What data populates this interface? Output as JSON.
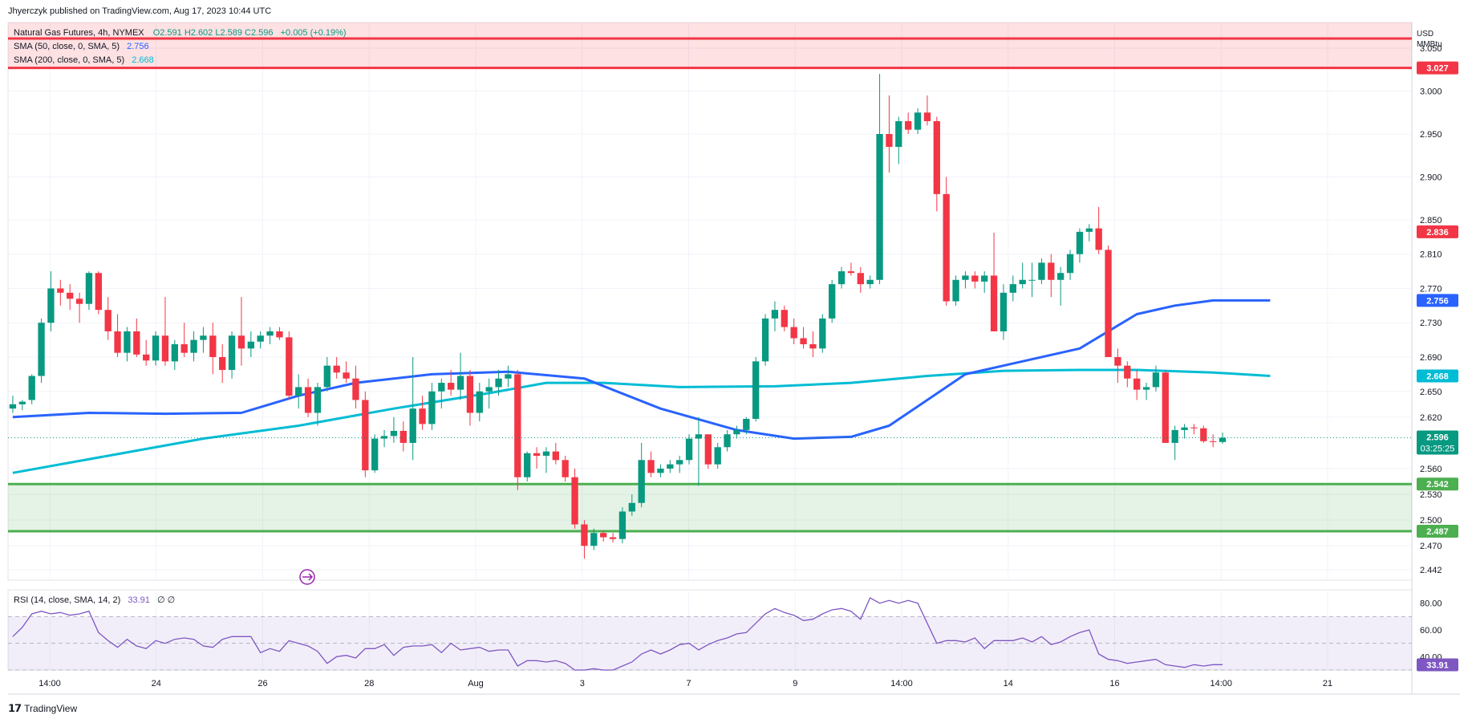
{
  "header": {
    "published": "Jhyerczyk published on TradingView.com, Aug 17, 2023 10:44 UTC"
  },
  "legend": {
    "symbol": "Natural Gas Futures, 4h, NYMEX",
    "ohlc": "O2.591  H2.602  L2.589  C2.596",
    "change": "+0.005 (+0.19%)",
    "sma50_label": "SMA (50, close, 0, SMA, 5)",
    "sma50_value": "2.756",
    "sma200_label": "SMA (200, close, 0, SMA, 5)",
    "sma200_value": "2.668",
    "rsi_label": "RSI (14, close, SMA, 14, 2)",
    "rsi_value": "33.91",
    "rsi_extra": "∅  ∅"
  },
  "currency": {
    "line1": "USD",
    "line2": "MMBtu"
  },
  "footer": {
    "brand": "TradingView"
  },
  "colors": {
    "up": "#089981",
    "down": "#f23645",
    "sma50": "#2962ff",
    "sma200": "#00bcd4",
    "rsi": "#7e57c2",
    "resistance": "#f23645",
    "support": "#4caf50"
  },
  "chart_data": {
    "type": "candlestick",
    "price_axis": {
      "ylim": [
        2.43,
        3.08
      ],
      "ticks": [
        "3.050",
        "3.000",
        "2.950",
        "2.900",
        "2.850",
        "2.810",
        "2.770",
        "2.730",
        "2.690",
        "2.650",
        "2.620",
        "2.560",
        "2.530",
        "2.500",
        "2.470",
        "2.442"
      ]
    },
    "time_axis": {
      "labels": [
        "14:00",
        "24",
        "26",
        "28",
        "Aug",
        "3",
        "7",
        "9",
        "14:00",
        "14",
        "16",
        "14:00",
        "21"
      ]
    },
    "zones": [
      {
        "name": "resistance",
        "from": 3.027,
        "to": 3.08
      },
      {
        "name": "support",
        "from": 2.487,
        "to": 2.542
      }
    ],
    "levels": [
      {
        "value": 3.027,
        "label": "3.027",
        "color": "#f23645"
      },
      {
        "value": 2.836,
        "label": "2.836",
        "color": "#f23645"
      },
      {
        "value": 2.756,
        "label": "2.756",
        "color": "#2962ff"
      },
      {
        "value": 2.668,
        "label": "2.668",
        "color": "#00bcd4"
      },
      {
        "value": 2.542,
        "label": "2.542",
        "color": "#4caf50"
      },
      {
        "value": 2.487,
        "label": "2.487",
        "color": "#4caf50"
      }
    ],
    "last_price": {
      "value": 2.596,
      "label": "2.596",
      "countdown": "03:25:25"
    },
    "candles": [
      [
        2.63,
        2.645,
        2.625,
        2.635
      ],
      [
        2.635,
        2.64,
        2.628,
        2.638
      ],
      [
        2.64,
        2.67,
        2.635,
        2.668
      ],
      [
        2.668,
        2.735,
        2.66,
        2.73
      ],
      [
        2.73,
        2.79,
        2.72,
        2.77
      ],
      [
        2.77,
        2.78,
        2.75,
        2.765
      ],
      [
        2.765,
        2.775,
        2.745,
        2.758
      ],
      [
        2.758,
        2.765,
        2.73,
        2.752
      ],
      [
        2.752,
        2.79,
        2.745,
        2.788
      ],
      [
        2.788,
        2.79,
        2.74,
        2.745
      ],
      [
        2.745,
        2.76,
        2.71,
        2.72
      ],
      [
        2.72,
        2.74,
        2.69,
        2.695
      ],
      [
        2.695,
        2.725,
        2.685,
        2.72
      ],
      [
        2.72,
        2.735,
        2.69,
        2.693
      ],
      [
        2.693,
        2.71,
        2.68,
        2.686
      ],
      [
        2.686,
        2.72,
        2.68,
        2.715
      ],
      [
        2.715,
        2.76,
        2.68,
        2.685
      ],
      [
        2.685,
        2.71,
        2.675,
        2.705
      ],
      [
        2.705,
        2.73,
        2.69,
        2.695
      ],
      [
        2.695,
        2.72,
        2.685,
        2.71
      ],
      [
        2.71,
        2.725,
        2.695,
        2.715
      ],
      [
        2.715,
        2.73,
        2.67,
        2.69
      ],
      [
        2.69,
        2.705,
        2.66,
        2.675
      ],
      [
        2.675,
        2.72,
        2.665,
        2.715
      ],
      [
        2.715,
        2.76,
        2.68,
        2.7
      ],
      [
        2.7,
        2.72,
        2.69,
        2.708
      ],
      [
        2.708,
        2.72,
        2.7,
        2.715
      ],
      [
        2.715,
        2.725,
        2.705,
        2.72
      ],
      [
        2.72,
        2.725,
        2.71,
        2.713
      ],
      [
        2.713,
        2.72,
        2.64,
        2.645
      ],
      [
        2.645,
        2.67,
        2.63,
        2.655
      ],
      [
        2.655,
        2.665,
        2.62,
        2.625
      ],
      [
        2.625,
        2.66,
        2.61,
        2.655
      ],
      [
        2.655,
        2.69,
        2.65,
        2.68
      ],
      [
        2.68,
        2.69,
        2.665,
        2.672
      ],
      [
        2.672,
        2.685,
        2.66,
        2.665
      ],
      [
        2.665,
        2.68,
        2.63,
        2.64
      ],
      [
        2.64,
        2.65,
        2.55,
        2.558
      ],
      [
        2.558,
        2.6,
        2.555,
        2.595
      ],
      [
        2.595,
        2.605,
        2.585,
        2.598
      ],
      [
        2.598,
        2.62,
        2.59,
        2.604
      ],
      [
        2.604,
        2.615,
        2.58,
        2.59
      ],
      [
        2.59,
        2.69,
        2.57,
        2.63
      ],
      [
        2.63,
        2.645,
        2.605,
        2.612
      ],
      [
        2.612,
        2.66,
        2.605,
        2.65
      ],
      [
        2.65,
        2.665,
        2.63,
        2.66
      ],
      [
        2.66,
        2.675,
        2.645,
        2.652
      ],
      [
        2.652,
        2.695,
        2.64,
        2.668
      ],
      [
        2.668,
        2.675,
        2.61,
        2.625
      ],
      [
        2.625,
        2.66,
        2.615,
        2.65
      ],
      [
        2.65,
        2.665,
        2.63,
        2.655
      ],
      [
        2.655,
        2.675,
        2.645,
        2.665
      ],
      [
        2.665,
        2.68,
        2.655,
        2.67
      ],
      [
        2.67,
        2.675,
        2.535,
        2.55
      ],
      [
        2.55,
        2.58,
        2.545,
        2.578
      ],
      [
        2.578,
        2.585,
        2.56,
        2.575
      ],
      [
        2.575,
        2.585,
        2.555,
        2.58
      ],
      [
        2.58,
        2.59,
        2.565,
        2.57
      ],
      [
        2.57,
        2.575,
        2.545,
        2.55
      ],
      [
        2.55,
        2.56,
        2.49,
        2.495
      ],
      [
        2.495,
        2.5,
        2.455,
        2.47
      ],
      [
        2.47,
        2.49,
        2.465,
        2.485
      ],
      [
        2.485,
        2.488,
        2.475,
        2.48
      ],
      [
        2.48,
        2.485,
        2.474,
        2.478
      ],
      [
        2.478,
        2.515,
        2.473,
        2.51
      ],
      [
        2.51,
        2.53,
        2.505,
        2.52
      ],
      [
        2.52,
        2.59,
        2.515,
        2.57
      ],
      [
        2.57,
        2.58,
        2.55,
        2.555
      ],
      [
        2.555,
        2.565,
        2.55,
        2.56
      ],
      [
        2.56,
        2.57,
        2.555,
        2.565
      ],
      [
        2.565,
        2.575,
        2.555,
        2.57
      ],
      [
        2.57,
        2.6,
        2.565,
        2.595
      ],
      [
        2.595,
        2.62,
        2.54,
        2.6
      ],
      [
        2.6,
        2.6,
        2.56,
        2.565
      ],
      [
        2.565,
        2.59,
        2.56,
        2.585
      ],
      [
        2.585,
        2.605,
        2.58,
        2.6
      ],
      [
        2.6,
        2.61,
        2.595,
        2.605
      ],
      [
        2.605,
        2.62,
        2.6,
        2.618
      ],
      [
        2.618,
        2.69,
        2.615,
        2.685
      ],
      [
        2.685,
        2.74,
        2.68,
        2.735
      ],
      [
        2.735,
        2.755,
        2.72,
        2.745
      ],
      [
        2.745,
        2.75,
        2.72,
        2.725
      ],
      [
        2.725,
        2.735,
        2.705,
        2.712
      ],
      [
        2.712,
        2.725,
        2.7,
        2.705
      ],
      [
        2.705,
        2.72,
        2.69,
        2.7
      ],
      [
        2.7,
        2.74,
        2.695,
        2.735
      ],
      [
        2.735,
        2.78,
        2.73,
        2.775
      ],
      [
        2.775,
        2.795,
        2.77,
        2.79
      ],
      [
        2.79,
        2.8,
        2.785,
        2.788
      ],
      [
        2.788,
        2.795,
        2.765,
        2.775
      ],
      [
        2.775,
        2.785,
        2.77,
        2.78
      ],
      [
        2.78,
        3.02,
        2.775,
        2.95
      ],
      [
        2.95,
        2.995,
        2.905,
        2.935
      ],
      [
        2.935,
        2.97,
        2.915,
        2.965
      ],
      [
        2.965,
        2.975,
        2.95,
        2.955
      ],
      [
        2.955,
        2.98,
        2.95,
        2.975
      ],
      [
        2.975,
        2.995,
        2.96,
        2.965
      ],
      [
        2.965,
        2.97,
        2.86,
        2.88
      ],
      [
        2.88,
        2.9,
        2.75,
        2.755
      ],
      [
        2.755,
        2.785,
        2.75,
        2.78
      ],
      [
        2.78,
        2.79,
        2.77,
        2.785
      ],
      [
        2.785,
        2.79,
        2.77,
        2.778
      ],
      [
        2.778,
        2.79,
        2.765,
        2.785
      ],
      [
        2.785,
        2.835,
        2.72,
        2.72
      ],
      [
        2.72,
        2.775,
        2.71,
        2.765
      ],
      [
        2.765,
        2.785,
        2.755,
        2.775
      ],
      [
        2.775,
        2.8,
        2.77,
        2.78
      ],
      [
        2.78,
        2.8,
        2.76,
        2.78
      ],
      [
        2.78,
        2.805,
        2.775,
        2.8
      ],
      [
        2.8,
        2.81,
        2.76,
        2.78
      ],
      [
        2.78,
        2.795,
        2.75,
        2.788
      ],
      [
        2.788,
        2.815,
        2.78,
        2.81
      ],
      [
        2.81,
        2.84,
        2.8,
        2.836
      ],
      [
        2.836,
        2.845,
        2.825,
        2.84
      ],
      [
        2.84,
        2.865,
        2.81,
        2.815
      ],
      [
        2.815,
        2.82,
        2.69,
        2.69
      ],
      [
        2.69,
        2.7,
        2.66,
        2.68
      ],
      [
        2.68,
        2.685,
        2.655,
        2.665
      ],
      [
        2.665,
        2.675,
        2.64,
        2.652
      ],
      [
        2.652,
        2.66,
        2.64,
        2.655
      ],
      [
        2.655,
        2.68,
        2.65,
        2.672
      ],
      [
        2.672,
        2.675,
        2.59,
        2.59
      ],
      [
        2.59,
        2.61,
        2.57,
        2.605
      ],
      [
        2.605,
        2.612,
        2.595,
        2.608
      ],
      [
        2.608,
        2.612,
        2.6,
        2.607
      ],
      [
        2.607,
        2.61,
        2.59,
        2.592
      ],
      [
        2.592,
        2.6,
        2.585,
        2.591
      ],
      [
        2.591,
        2.602,
        2.589,
        2.596
      ]
    ],
    "sma50": [
      [
        0,
        2.62
      ],
      [
        8,
        2.625
      ],
      [
        16,
        2.624
      ],
      [
        24,
        2.625
      ],
      [
        30,
        2.645
      ],
      [
        36,
        2.66
      ],
      [
        44,
        2.67
      ],
      [
        52,
        2.673
      ],
      [
        60,
        2.665
      ],
      [
        68,
        2.63
      ],
      [
        76,
        2.605
      ],
      [
        82,
        2.595
      ],
      [
        88,
        2.597
      ],
      [
        92,
        2.61
      ],
      [
        96,
        2.64
      ],
      [
        100,
        2.67
      ],
      [
        106,
        2.685
      ],
      [
        112,
        2.7
      ],
      [
        118,
        2.74
      ],
      [
        122,
        2.75
      ],
      [
        126,
        2.756
      ],
      [
        132,
        2.756
      ]
    ],
    "sma200": [
      [
        0,
        2.555
      ],
      [
        10,
        2.575
      ],
      [
        20,
        2.595
      ],
      [
        30,
        2.61
      ],
      [
        40,
        2.63
      ],
      [
        50,
        2.648
      ],
      [
        56,
        2.66
      ],
      [
        62,
        2.66
      ],
      [
        70,
        2.655
      ],
      [
        80,
        2.656
      ],
      [
        88,
        2.66
      ],
      [
        96,
        2.668
      ],
      [
        104,
        2.674
      ],
      [
        112,
        2.675
      ],
      [
        118,
        2.675
      ],
      [
        126,
        2.672
      ],
      [
        132,
        2.668
      ]
    ],
    "rsi": {
      "ylim": [
        30,
        90
      ],
      "ticks": [
        "80.00",
        "60.00",
        "40.00"
      ],
      "band": [
        30,
        70
      ],
      "values": [
        55,
        62,
        72,
        74,
        72,
        73,
        71,
        72,
        74,
        58,
        52,
        47,
        53,
        48,
        46,
        52,
        50,
        53,
        54,
        53,
        48,
        47,
        53,
        55,
        55,
        55,
        43,
        46,
        44,
        52,
        50,
        48,
        44,
        35,
        40,
        41,
        39,
        46,
        46,
        49,
        41,
        47,
        48,
        48,
        49,
        43,
        50,
        45,
        46,
        47,
        44,
        45,
        45,
        33,
        37,
        37,
        36,
        37,
        35,
        29,
        28,
        31,
        30,
        30,
        33,
        36,
        42,
        45,
        42,
        45,
        49,
        50,
        45,
        49,
        52,
        54,
        57,
        58,
        65,
        72,
        76,
        73,
        71,
        67,
        68,
        72,
        75,
        76,
        74,
        68,
        84,
        80,
        82,
        80,
        82,
        80,
        65,
        50,
        52,
        52,
        51,
        54,
        46,
        52,
        52,
        52,
        54,
        51,
        55,
        49,
        51,
        55,
        58,
        60,
        42,
        38,
        37,
        35,
        36,
        37,
        38,
        34,
        33,
        32,
        34,
        33,
        34,
        34
      ]
    }
  }
}
